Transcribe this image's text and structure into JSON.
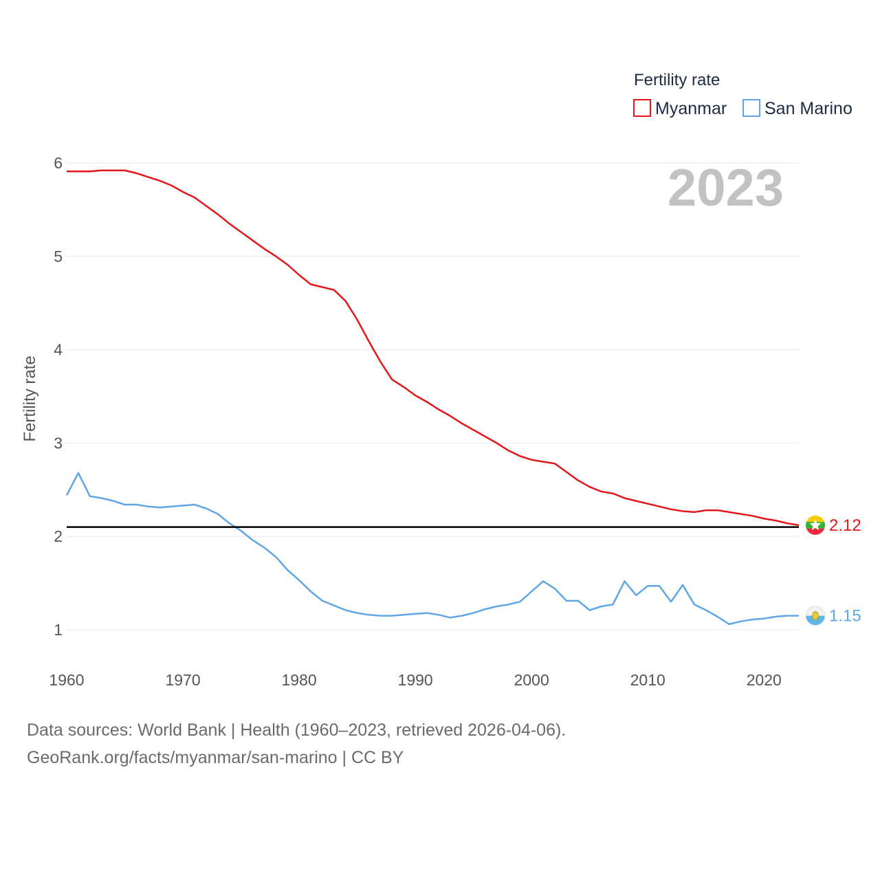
{
  "chart_data": {
    "type": "line",
    "year_label": "2023",
    "ylabel": "Fertility rate",
    "xlim": [
      1960,
      2023
    ],
    "ylim": [
      0.5,
      6.25
    ],
    "x_ticks": [
      1960,
      1970,
      1980,
      1990,
      2000,
      2010,
      2020
    ],
    "y_ticks": [
      1,
      2,
      3,
      4,
      5,
      6
    ],
    "reference_line": 2.1,
    "legend": {
      "title": "Fertility rate",
      "position": "top-right"
    },
    "series": [
      {
        "name": "Myanmar",
        "color": "#e3161b",
        "end_value": "2.12",
        "x": [
          1960,
          1961,
          1962,
          1963,
          1964,
          1965,
          1966,
          1967,
          1968,
          1969,
          1970,
          1971,
          1972,
          1973,
          1974,
          1975,
          1976,
          1977,
          1978,
          1979,
          1980,
          1981,
          1982,
          1983,
          1984,
          1985,
          1986,
          1987,
          1988,
          1989,
          1990,
          1991,
          1992,
          1993,
          1994,
          1995,
          1996,
          1997,
          1998,
          1999,
          2000,
          2001,
          2002,
          2003,
          2004,
          2005,
          2006,
          2007,
          2008,
          2009,
          2010,
          2011,
          2012,
          2013,
          2014,
          2015,
          2016,
          2017,
          2018,
          2019,
          2020,
          2021,
          2022,
          2023
        ],
        "values": [
          5.91,
          5.91,
          5.91,
          5.92,
          5.92,
          5.92,
          5.89,
          5.85,
          5.81,
          5.76,
          5.69,
          5.63,
          5.54,
          5.45,
          5.35,
          5.26,
          5.17,
          5.08,
          5.0,
          4.91,
          4.8,
          4.7,
          4.67,
          4.64,
          4.52,
          4.32,
          4.09,
          3.87,
          3.68,
          3.6,
          3.51,
          3.44,
          3.36,
          3.29,
          3.21,
          3.14,
          3.07,
          3.0,
          2.92,
          2.86,
          2.82,
          2.8,
          2.78,
          2.69,
          2.6,
          2.53,
          2.48,
          2.46,
          2.41,
          2.38,
          2.35,
          2.32,
          2.29,
          2.27,
          2.26,
          2.28,
          2.28,
          2.26,
          2.24,
          2.22,
          2.19,
          2.17,
          2.14,
          2.12
        ]
      },
      {
        "name": "San Marino",
        "color": "#5ea6e6",
        "end_value": "1.15",
        "x": [
          1960,
          1961,
          1962,
          1963,
          1964,
          1965,
          1966,
          1967,
          1968,
          1969,
          1970,
          1971,
          1972,
          1973,
          1974,
          1975,
          1976,
          1977,
          1978,
          1979,
          1980,
          1981,
          1982,
          1983,
          1984,
          1985,
          1986,
          1987,
          1988,
          1989,
          1990,
          1991,
          1992,
          1993,
          1994,
          1995,
          1996,
          1997,
          1998,
          1999,
          2000,
          2001,
          2002,
          2003,
          2004,
          2005,
          2006,
          2007,
          2008,
          2009,
          2010,
          2011,
          2012,
          2013,
          2014,
          2015,
          2016,
          2017,
          2018,
          2019,
          2020,
          2021,
          2022,
          2023
        ],
        "values": [
          2.44,
          2.68,
          2.43,
          2.41,
          2.38,
          2.34,
          2.34,
          2.32,
          2.31,
          2.32,
          2.33,
          2.34,
          2.3,
          2.24,
          2.14,
          2.06,
          1.96,
          1.88,
          1.78,
          1.64,
          1.53,
          1.41,
          1.31,
          1.26,
          1.21,
          1.18,
          1.16,
          1.15,
          1.15,
          1.16,
          1.17,
          1.18,
          1.16,
          1.13,
          1.15,
          1.18,
          1.22,
          1.25,
          1.27,
          1.3,
          1.41,
          1.52,
          1.44,
          1.31,
          1.31,
          1.21,
          1.25,
          1.27,
          1.52,
          1.37,
          1.47,
          1.47,
          1.3,
          1.48,
          1.27,
          1.21,
          1.14,
          1.06,
          1.09,
          1.11,
          1.12,
          1.14,
          1.15,
          1.15
        ]
      }
    ]
  },
  "source": {
    "line1": "Data sources: World Bank | Health (1960–2023, retrieved 2026-04-06).",
    "line2": "GeoRank.org/facts/myanmar/san-marino | CC BY"
  }
}
